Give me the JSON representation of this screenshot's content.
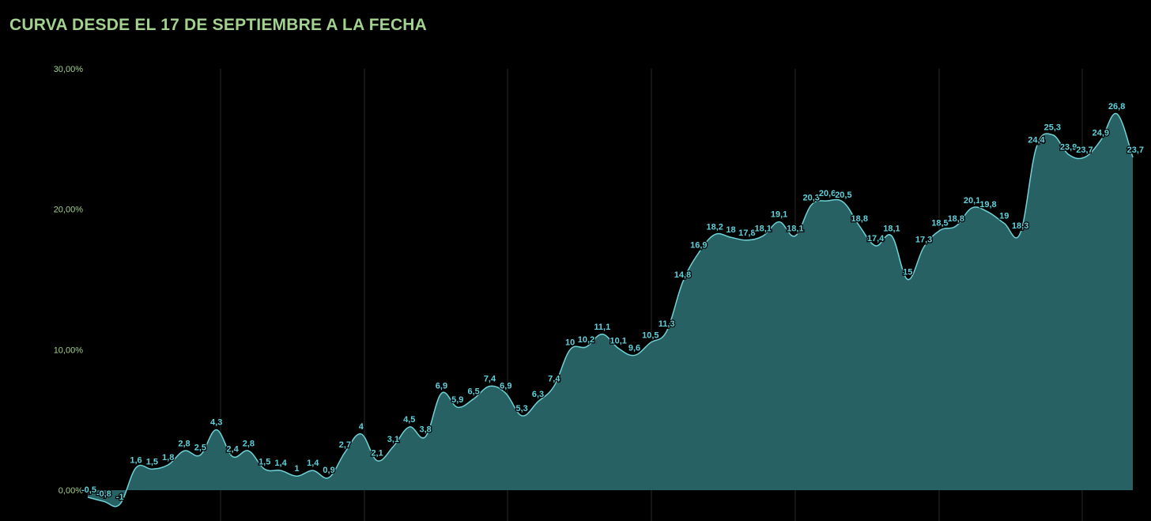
{
  "chart_data": {
    "type": "area",
    "title": "CURVA DESDE EL 17 DE SEPTIEMBRE A LA FECHA",
    "xlabel": "",
    "ylabel": "",
    "y_ticks": [
      "0,00%",
      "10,00%",
      "20,00%",
      "30,00%"
    ],
    "ylim": [
      -1.5,
      30
    ],
    "grid": {
      "vertical": true,
      "horizontal": false
    },
    "colors": {
      "line": "#6fd3d8",
      "fill": "#276164",
      "label": "#5fd3dd",
      "title": "#a3d18f",
      "axis_text": "#a3d18f"
    },
    "series": [
      {
        "values": [
          -0.5,
          -0.8,
          -1,
          1.6,
          1.5,
          1.8,
          2.8,
          2.5,
          4.3,
          2.4,
          2.8,
          1.5,
          1.4,
          1,
          1.4,
          0.9,
          2.7,
          4,
          2.1,
          3.1,
          4.5,
          3.8,
          6.9,
          5.9,
          6.5,
          7.4,
          6.9,
          5.3,
          6.3,
          7.4,
          10,
          10.2,
          11.1,
          10.1,
          9.6,
          10.5,
          11.3,
          14.8,
          16.9,
          18.2,
          18,
          17.8,
          18.1,
          19.1,
          18.1,
          20.3,
          20.6,
          20.5,
          18.8,
          17.4,
          18.1,
          15,
          17.3,
          18.5,
          18.8,
          20.1,
          19.8,
          19,
          18.3,
          24.4,
          25.3,
          23.9,
          23.7,
          24.9,
          26.8,
          23.7
        ],
        "labels": [
          "-0,5",
          "-0,8",
          "-1",
          "1,6",
          "1,5",
          "1,8",
          "2,8",
          "2,5",
          "4,3",
          "2,4",
          "2,8",
          "1,5",
          "1,4",
          "1",
          "1,4",
          "0,9",
          "2,7",
          "4",
          "2,1",
          "3,1",
          "4,5",
          "3,8",
          "6,9",
          "5,9",
          "6,5",
          "7,4",
          "6,9",
          "5,3",
          "6,3",
          "7,4",
          "10",
          "10,2",
          "11,1",
          "10,1",
          "9,6",
          "10,5",
          "11,3",
          "14,8",
          "16,9",
          "18,2",
          "18",
          "17,8",
          "18,1",
          "19,1",
          "18,1",
          "20,3",
          "20,6",
          "20,5",
          "18,8",
          "17,4",
          "18,1",
          "15",
          "17,3",
          "18,5",
          "18,8",
          "20,1",
          "19,8",
          "19",
          "18,3",
          "24,4",
          "25,3",
          "23,9",
          "23,7",
          "24,9",
          "26,8",
          "23,7"
        ]
      }
    ]
  }
}
